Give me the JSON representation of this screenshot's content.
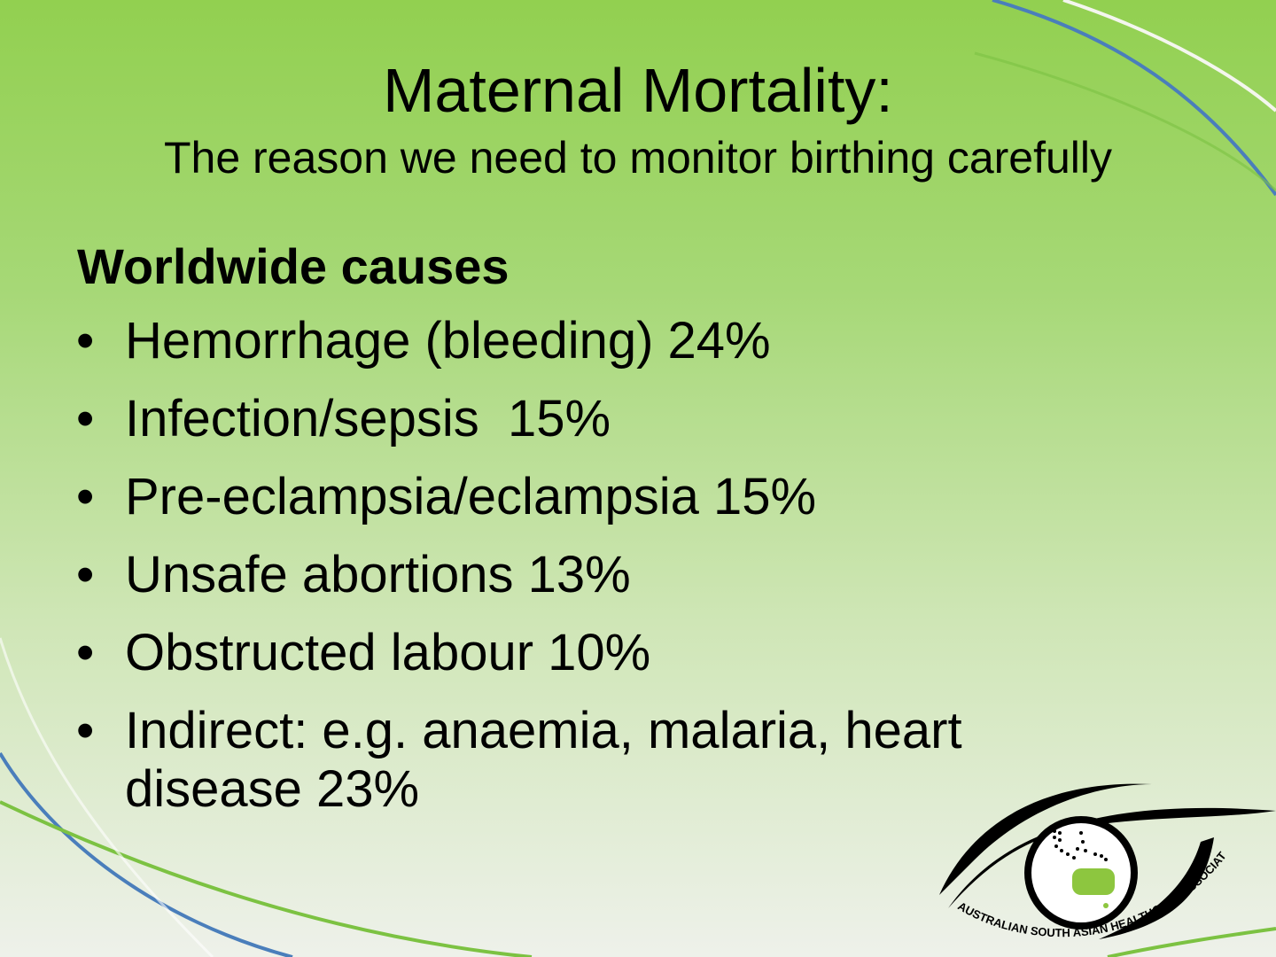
{
  "slide": {
    "title": "Maternal Mortality:",
    "subtitle": "The reason we need to monitor birthing carefully",
    "heading": "Worldwide causes",
    "bullets": [
      {
        "text": "Hemorrhage (bleeding) 24%"
      },
      {
        "text": "Infection/sepsis  15%"
      },
      {
        "text": "Pre-eclampsia/eclampsia 15%"
      },
      {
        "text": "Unsafe abortions 13%"
      },
      {
        "text": "Obstructed labour 10%"
      },
      {
        "text": "Indirect: e.g. anaemia, malaria, heart",
        "cont": "disease 23%"
      }
    ],
    "bullet_glyph": "•"
  },
  "logo": {
    "text": "AUSTRALIAN SOUTH ASIAN HEALTHCARE ASSOCIATION"
  },
  "colors": {
    "green": "#92d050",
    "blue": "#4a7ebb",
    "accent_green": "#7cc242"
  }
}
